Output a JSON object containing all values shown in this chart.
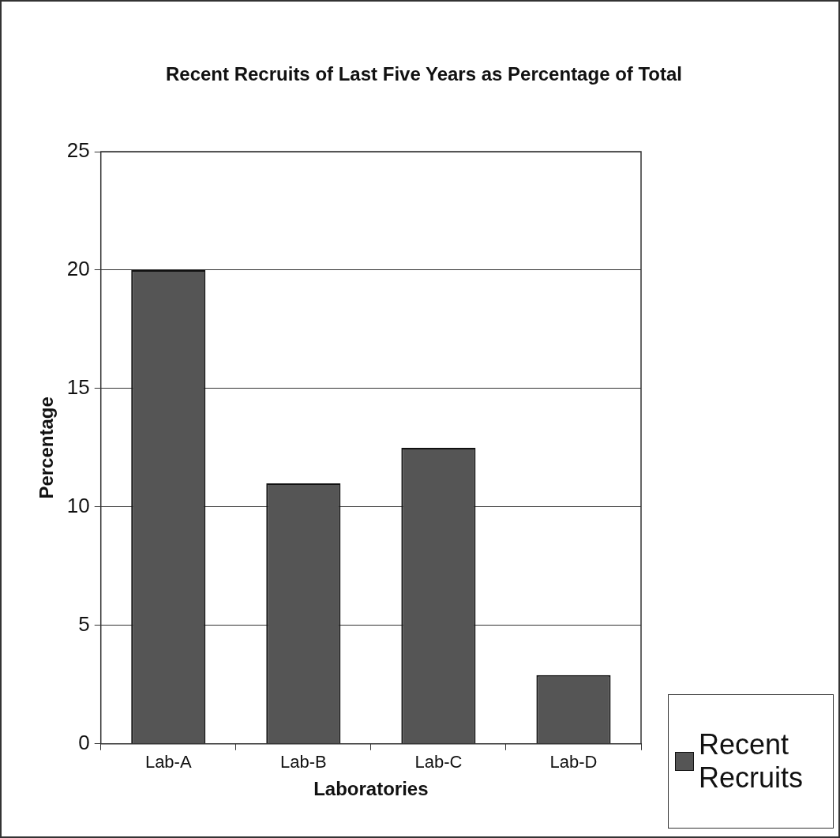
{
  "chart_data": {
    "type": "bar",
    "title": "Recent Recruits of Last Five Years as Percentage of Total",
    "xlabel": "Laboratories",
    "ylabel": "Percentage",
    "categories": [
      "Lab-A",
      "Lab-B",
      "Lab-C",
      "Lab-D"
    ],
    "series": [
      {
        "name": "Recent Recruits",
        "color": "#555555",
        "values": [
          20,
          11,
          12.5,
          2.9
        ]
      }
    ],
    "ylim": [
      0,
      25
    ],
    "yticks": [
      0,
      5,
      10,
      15,
      20,
      25
    ],
    "grid": "y",
    "legend": "bottom right"
  }
}
